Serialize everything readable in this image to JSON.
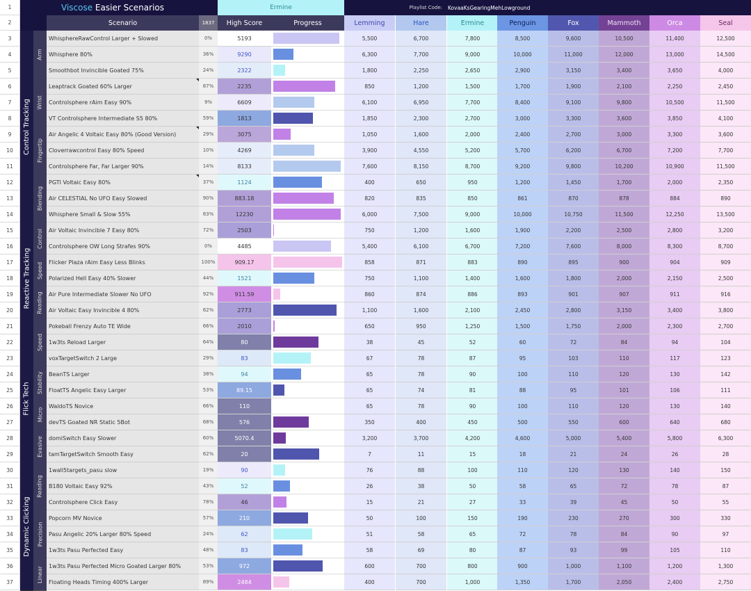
{
  "title": {
    "brand": "Viscose",
    "rest": " Easier Scenarios"
  },
  "top_rank": "Ermine",
  "playlist": {
    "label": "Playlist Code:",
    "code": "KovaaKsGearingMehLowground"
  },
  "header": {
    "row_num": "2",
    "scenario": "Scenario",
    "count": "1837",
    "high_score": "High Score",
    "progress": "Progress"
  },
  "ranks": [
    {
      "name": "Lemming",
      "head_bg": "#c9cdf6",
      "head_fg": "#3d47a8",
      "cell_bg": "#e6e7fc"
    },
    {
      "name": "Hare",
      "head_bg": "#b2c8ee",
      "head_fg": "#2c56c4",
      "cell_bg": "#dfe7f8"
    },
    {
      "name": "Ermine",
      "head_bg": "#b3f3f7",
      "head_fg": "#2d8a93",
      "cell_bg": "#dcf9fa"
    },
    {
      "name": "Penguin",
      "head_bg": "#6c96e3",
      "head_fg": "#0c1e57",
      "cell_bg": "#bdd2f7"
    },
    {
      "name": "Fox",
      "head_bg": "#5157ae",
      "head_fg": "#ffffff",
      "cell_bg": "#b9bee8"
    },
    {
      "name": "Mammoth",
      "head_bg": "#744294",
      "head_fg": "#f0e2f8",
      "cell_bg": "#c0a8d6"
    },
    {
      "name": "Orca",
      "head_bg": "#cd8ae4",
      "head_fg": "#ffffff",
      "cell_bg": "#e8ccf3"
    },
    {
      "name": "Seal",
      "head_bg": "#f5c6ea",
      "head_fg": "#6a2a5c",
      "cell_bg": "#fbe7f7"
    }
  ],
  "categories": [
    {
      "label": "Control Tracking",
      "start": 0,
      "span": 12
    },
    {
      "label": "Reactive Tracking",
      "start": 12,
      "span": 7
    },
    {
      "label": "Flick Tech",
      "start": 19,
      "span": 8
    },
    {
      "label": "Dynamic Clicking",
      "start": 27,
      "span": 8
    }
  ],
  "subcategories": [
    {
      "label": "Arm",
      "start": 0,
      "span": 3
    },
    {
      "label": "Wrist",
      "start": 3,
      "span": 3
    },
    {
      "label": "Fingertip",
      "start": 6,
      "span": 3
    },
    {
      "label": "Blending",
      "start": 9,
      "span": 3
    },
    {
      "label": "Control",
      "start": 12,
      "span": 2
    },
    {
      "label": "Speed",
      "start": 14,
      "span": 2
    },
    {
      "label": "Reading",
      "start": 16,
      "span": 2
    },
    {
      "label": "Speed",
      "start": 18,
      "span": 3
    },
    {
      "label": "Stability",
      "start": 21,
      "span": 2
    },
    {
      "label": "Micro",
      "start": 23,
      "span": 2
    },
    {
      "label": "Evasive",
      "start": 25,
      "span": 2
    },
    {
      "label": "Reading",
      "start": 27,
      "span": 3
    },
    {
      "label": "Precision",
      "start": 30,
      "span": 3
    },
    {
      "label": "Linear",
      "start": 33,
      "span": 2
    }
  ],
  "rows": [
    {
      "num": "3",
      "scenario": "WhisphereRawControl Larger + Slowed",
      "pct": "0%",
      "score": "5193",
      "score_bg": "#ffffff",
      "score_fg": "#333333",
      "bar_frac": 0.96,
      "bar_color": "#c9c6f4",
      "tri": false,
      "thresholds": [
        "5,500",
        "6,700",
        "7,800",
        "8,500",
        "9,600",
        "10,500",
        "11,400",
        "12,500"
      ]
    },
    {
      "num": "4",
      "scenario": "Whisphere 80%",
      "pct": "36%",
      "score": "9290",
      "score_bg": "#e9e9fb",
      "score_fg": "#3f52c8",
      "bar_frac": 0.29,
      "bar_color": "#6990e0",
      "tri": false,
      "thresholds": [
        "6,300",
        "7,700",
        "9,000",
        "10,000",
        "11,000",
        "12,000",
        "13,000",
        "14,500"
      ]
    },
    {
      "num": "5",
      "scenario": "Smoothbot Invincible Goated 75%",
      "pct": "24%",
      "score": "2322",
      "score_bg": "#e3ecf9",
      "score_fg": "#3f52c8",
      "bar_frac": 0.17,
      "bar_color": "#b3f3f7",
      "tri": false,
      "thresholds": [
        "1,800",
        "2,250",
        "2,650",
        "2,900",
        "3,150",
        "3,400",
        "3,650",
        "4,000"
      ]
    },
    {
      "num": "6",
      "scenario": "Leaptrack Goated 60% Larger",
      "pct": "87%",
      "score": "2235",
      "score_bg": "#b1a0d8",
      "score_fg": "#333333",
      "bar_frac": 0.9,
      "bar_color": "#c281e6",
      "tri": true,
      "thresholds": [
        "850",
        "1,200",
        "1,500",
        "1,700",
        "1,900",
        "2,100",
        "2,250",
        "2,450"
      ]
    },
    {
      "num": "7",
      "scenario": "Controlsphere rAim Easy 90%",
      "pct": "9%",
      "score": "6609",
      "score_bg": "#eceafb",
      "score_fg": "#333333",
      "bar_frac": 0.6,
      "bar_color": "#b4c9ee",
      "tri": false,
      "thresholds": [
        "6,100",
        "6,950",
        "7,700",
        "8,400",
        "9,100",
        "9,800",
        "10,500",
        "11,500"
      ]
    },
    {
      "num": "8",
      "scenario": "VT Controlsphere Intermediate S5 80%",
      "pct": "59%",
      "score": "1813",
      "score_bg": "#8ea8e0",
      "score_fg": "#333333",
      "bar_frac": 0.58,
      "bar_color": "#5055ad",
      "tri": false,
      "thresholds": [
        "1,850",
        "2,300",
        "2,700",
        "3,000",
        "3,300",
        "3,600",
        "3,850",
        "4,100"
      ]
    },
    {
      "num": "9",
      "scenario": "Air Angelic 4 Voltaic Easy 80% (Good Version)",
      "pct": "29%",
      "score": "3075",
      "score_bg": "#bba6da",
      "score_fg": "#333333",
      "bar_frac": 0.25,
      "bar_color": "#c281e6",
      "tri": true,
      "thresholds": [
        "1,050",
        "1,600",
        "2,000",
        "2,400",
        "2,700",
        "3,000",
        "3,300",
        "3,600"
      ]
    },
    {
      "num": "10",
      "scenario": "Cloverrawcontrol Easy 80% Speed",
      "pct": "10%",
      "score": "4269",
      "score_bg": "#e6edfa",
      "score_fg": "#333333",
      "bar_frac": 0.6,
      "bar_color": "#b4c9ee",
      "tri": false,
      "thresholds": [
        "3,900",
        "4,550",
        "5,200",
        "5,700",
        "6,200",
        "6,700",
        "7,200",
        "7,700"
      ]
    },
    {
      "num": "11",
      "scenario": "Controlsphere Far, Far Larger 90%",
      "pct": "14%",
      "score": "8133",
      "score_bg": "#e6edfa",
      "score_fg": "#333333",
      "bar_frac": 0.98,
      "bar_color": "#b4c9ee",
      "tri": false,
      "thresholds": [
        "7,600",
        "8,150",
        "8,700",
        "9,200",
        "9,800",
        "10,200",
        "10,900",
        "11,500"
      ]
    },
    {
      "num": "12",
      "scenario": "PGTI Voltaic Easy 80%",
      "pct": "37%",
      "score": "1124",
      "score_bg": "#dff8fb",
      "score_fg": "#3a7e9c",
      "bar_frac": 0.71,
      "bar_color": "#6990e0",
      "tri": true,
      "thresholds": [
        "400",
        "650",
        "950",
        "1,200",
        "1,450",
        "1,700",
        "2,000",
        "2,350"
      ]
    },
    {
      "num": "13",
      "scenario": "Air CELESTIAL No UFO Easy Slowed",
      "pct": "90%",
      "score": "883.18",
      "score_bg": "#b1a0d8",
      "score_fg": "#333333",
      "bar_frac": 0.88,
      "bar_color": "#c281e6",
      "tri": false,
      "thresholds": [
        "820",
        "835",
        "850",
        "861",
        "870",
        "878",
        "884",
        "890"
      ]
    },
    {
      "num": "14",
      "scenario": "Whisphere Small & Slow 55%",
      "pct": "83%",
      "score": "12230",
      "score_bg": "#b1a0d8",
      "score_fg": "#333333",
      "bar_frac": 0.98,
      "bar_color": "#c281e6",
      "tri": false,
      "thresholds": [
        "6,000",
        "7,500",
        "9,000",
        "10,000",
        "10,750",
        "11,500",
        "12,250",
        "13,500"
      ]
    },
    {
      "num": "15",
      "scenario": "Air Voltaic Invincible 7 Easy 80%",
      "pct": "72%",
      "score": "2503",
      "score_bg": "#aa9fd8",
      "score_fg": "#333333",
      "bar_frac": 0.01,
      "bar_color": "#c281e6",
      "tri": false,
      "thresholds": [
        "750",
        "1,200",
        "1,600",
        "1,900",
        "2,200",
        "2,500",
        "2,800",
        "3,200"
      ]
    },
    {
      "num": "16",
      "scenario": "Controlsphere OW Long Strafes 90%",
      "pct": "0%",
      "score": "4485",
      "score_bg": "#ffffff",
      "score_fg": "#333333",
      "bar_frac": 0.84,
      "bar_color": "#c9c6f4",
      "tri": false,
      "thresholds": [
        "5,400",
        "6,100",
        "6,700",
        "7,200",
        "7,600",
        "8,000",
        "8,300",
        "8,700"
      ]
    },
    {
      "num": "17",
      "scenario": "Flicker Plaza rAim Easy Less Blinks",
      "pct": "100%",
      "score": "909.17",
      "score_bg": "#f5c4eb",
      "score_fg": "#333333",
      "bar_frac": 1.0,
      "bar_color": "#f5c4eb",
      "tri": false,
      "thresholds": [
        "858",
        "871",
        "883",
        "890",
        "895",
        "900",
        "904",
        "909"
      ]
    },
    {
      "num": "18",
      "scenario": "Polarized Hell Easy 40% Slower",
      "pct": "44%",
      "score": "1521",
      "score_bg": "#dff8fb",
      "score_fg": "#3a7e9c",
      "bar_frac": 0.6,
      "bar_color": "#6990e0",
      "tri": false,
      "thresholds": [
        "750",
        "1,100",
        "1,400",
        "1,600",
        "1,800",
        "2,000",
        "2,150",
        "2,500"
      ]
    },
    {
      "num": "19",
      "scenario": "Air Pure Intermediate Slower No UFO",
      "pct": "92%",
      "score": "911.59",
      "score_bg": "#cf8ee4",
      "score_fg": "#333333",
      "bar_frac": 0.1,
      "bar_color": "#f5c4eb",
      "tri": false,
      "thresholds": [
        "860",
        "874",
        "886",
        "893",
        "901",
        "907",
        "911",
        "916"
      ]
    },
    {
      "num": "20",
      "scenario": "Air Voltaic Easy Invincible 4 80%",
      "pct": "62%",
      "score": "2773",
      "score_bg": "#aa9fd8",
      "score_fg": "#333333",
      "bar_frac": 0.92,
      "bar_color": "#5055ad",
      "tri": false,
      "thresholds": [
        "1,100",
        "1,600",
        "2,100",
        "2,450",
        "2,800",
        "3,150",
        "3,400",
        "3,800"
      ]
    },
    {
      "num": "21",
      "scenario": "Pokeball Frenzy Auto TE Wide",
      "pct": "66%",
      "score": "2010",
      "score_bg": "#aa9fd8",
      "score_fg": "#333333",
      "bar_frac": 0.02,
      "bar_color": "#c281e6",
      "tri": false,
      "thresholds": [
        "650",
        "950",
        "1,250",
        "1,500",
        "1,750",
        "2,000",
        "2,300",
        "2,700"
      ]
    },
    {
      "num": "22",
      "scenario": "1w3ts Reload Larger",
      "pct": "64%",
      "score": "80",
      "score_bg": "#8080aa",
      "score_fg": "#ffffff",
      "bar_frac": 0.66,
      "bar_color": "#6e3b9c",
      "tri": false,
      "thresholds": [
        "38",
        "45",
        "52",
        "60",
        "72",
        "84",
        "94",
        "104"
      ]
    },
    {
      "num": "23",
      "scenario": "voxTargetSwitch 2 Large",
      "pct": "29%",
      "score": "83",
      "score_bg": "#dde8f8",
      "score_fg": "#3f52c8",
      "bar_frac": 0.55,
      "bar_color": "#b3f3f7",
      "tri": false,
      "thresholds": [
        "67",
        "78",
        "87",
        "95",
        "103",
        "110",
        "117",
        "123"
      ]
    },
    {
      "num": "24",
      "scenario": "BeanTS Larger",
      "pct": "38%",
      "score": "94",
      "score_bg": "#dff8fb",
      "score_fg": "#3a7e9c",
      "bar_frac": 0.4,
      "bar_color": "#6990e0",
      "tri": false,
      "thresholds": [
        "65",
        "78",
        "90",
        "100",
        "110",
        "120",
        "130",
        "142"
      ]
    },
    {
      "num": "25",
      "scenario": "FloatTS Angelic Easy Larger",
      "pct": "53%",
      "score": "89.15",
      "score_bg": "#8ea8e0",
      "score_fg": "#ffffff",
      "bar_frac": 0.16,
      "bar_color": "#5055ad",
      "tri": false,
      "thresholds": [
        "65",
        "74",
        "81",
        "88",
        "95",
        "101",
        "106",
        "111"
      ]
    },
    {
      "num": "26",
      "scenario": "WaldoTS Novice",
      "pct": "66%",
      "score": "110",
      "score_bg": "#8080aa",
      "score_fg": "#ffffff",
      "bar_frac": 0.0,
      "bar_color": "#6e3b9c",
      "tri": false,
      "thresholds": [
        "65",
        "78",
        "90",
        "100",
        "110",
        "120",
        "130",
        "140"
      ]
    },
    {
      "num": "27",
      "scenario": "devTS Goated NR Static 5Bot",
      "pct": "68%",
      "score": "576",
      "score_bg": "#8080aa",
      "score_fg": "#ffffff",
      "bar_frac": 0.52,
      "bar_color": "#6e3b9c",
      "tri": false,
      "thresholds": [
        "350",
        "400",
        "450",
        "500",
        "550",
        "600",
        "640",
        "680"
      ]
    },
    {
      "num": "28",
      "scenario": "domiSwitch Easy Slower",
      "pct": "60%",
      "score": "5070.4",
      "score_bg": "#8080aa",
      "score_fg": "#ffffff",
      "bar_frac": 0.18,
      "bar_color": "#6e3b9c",
      "tri": false,
      "thresholds": [
        "3,200",
        "3,700",
        "4,200",
        "4,600",
        "5,000",
        "5,400",
        "5,800",
        "6,300"
      ]
    },
    {
      "num": "29",
      "scenario": "tamTargetSwitch Smooth Easy",
      "pct": "62%",
      "score": "20",
      "score_bg": "#8080aa",
      "score_fg": "#ffffff",
      "bar_frac": 0.67,
      "bar_color": "#5055ad",
      "tri": false,
      "thresholds": [
        "7",
        "11",
        "15",
        "18",
        "21",
        "24",
        "26",
        "28"
      ]
    },
    {
      "num": "30",
      "scenario": "1wall5targets_pasu slow",
      "pct": "19%",
      "score": "90",
      "score_bg": "#eceafb",
      "score_fg": "#3f52c8",
      "bar_frac": 0.17,
      "bar_color": "#b3f3f7",
      "tri": false,
      "thresholds": [
        "76",
        "88",
        "100",
        "110",
        "120",
        "130",
        "140",
        "150"
      ]
    },
    {
      "num": "31",
      "scenario": "B180 Voltaic Easy 92%",
      "pct": "43%",
      "score": "52",
      "score_bg": "#dff8fb",
      "score_fg": "#3a7e9c",
      "bar_frac": 0.24,
      "bar_color": "#6990e0",
      "tri": false,
      "thresholds": [
        "26",
        "38",
        "50",
        "58",
        "65",
        "72",
        "78",
        "87"
      ]
    },
    {
      "num": "32",
      "scenario": "Controlsphere Click Easy",
      "pct": "78%",
      "score": "46",
      "score_bg": "#b1a0d8",
      "score_fg": "#333333",
      "bar_frac": 0.19,
      "bar_color": "#c281e6",
      "tri": false,
      "thresholds": [
        "15",
        "21",
        "27",
        "33",
        "39",
        "45",
        "50",
        "55"
      ]
    },
    {
      "num": "33",
      "scenario": "Popcorn MV Novice",
      "pct": "57%",
      "score": "210",
      "score_bg": "#8ea8e0",
      "score_fg": "#ffffff",
      "bar_frac": 0.5,
      "bar_color": "#5055ad",
      "tri": false,
      "thresholds": [
        "50",
        "100",
        "150",
        "190",
        "230",
        "270",
        "300",
        "330"
      ]
    },
    {
      "num": "34",
      "scenario": "Pasu Angelic 20% Larger 80% Speed",
      "pct": "24%",
      "score": "62",
      "score_bg": "#dde8f8",
      "score_fg": "#3f52c8",
      "bar_frac": 0.57,
      "bar_color": "#b3f3f7",
      "tri": false,
      "thresholds": [
        "51",
        "58",
        "65",
        "72",
        "78",
        "84",
        "90",
        "97"
      ]
    },
    {
      "num": "35",
      "scenario": "1w3ts Pasu Perfected Easy",
      "pct": "48%",
      "score": "83",
      "score_bg": "#dde8f8",
      "score_fg": "#3f52c8",
      "bar_frac": 0.42,
      "bar_color": "#6990e0",
      "tri": false,
      "thresholds": [
        "58",
        "69",
        "80",
        "87",
        "93",
        "99",
        "105",
        "110"
      ]
    },
    {
      "num": "36",
      "scenario": "1w3ts Pasu Perfected Micro Goated Larger 80%",
      "pct": "53%",
      "score": "972",
      "score_bg": "#8ea8e0",
      "score_fg": "#ffffff",
      "bar_frac": 0.72,
      "bar_color": "#5055ad",
      "tri": false,
      "thresholds": [
        "600",
        "700",
        "800",
        "900",
        "1,000",
        "1,100",
        "1,200",
        "1,300"
      ]
    },
    {
      "num": "37",
      "scenario": "Floating Heads Timing 400% Larger",
      "pct": "89%",
      "score": "2484",
      "score_bg": "#cf8ee4",
      "score_fg": "#ffffff",
      "bar_frac": 0.23,
      "bar_color": "#f5c4eb",
      "tri": false,
      "thresholds": [
        "400",
        "700",
        "1,000",
        "1,350",
        "1,700",
        "2,050",
        "2,400",
        "2,750"
      ]
    }
  ]
}
